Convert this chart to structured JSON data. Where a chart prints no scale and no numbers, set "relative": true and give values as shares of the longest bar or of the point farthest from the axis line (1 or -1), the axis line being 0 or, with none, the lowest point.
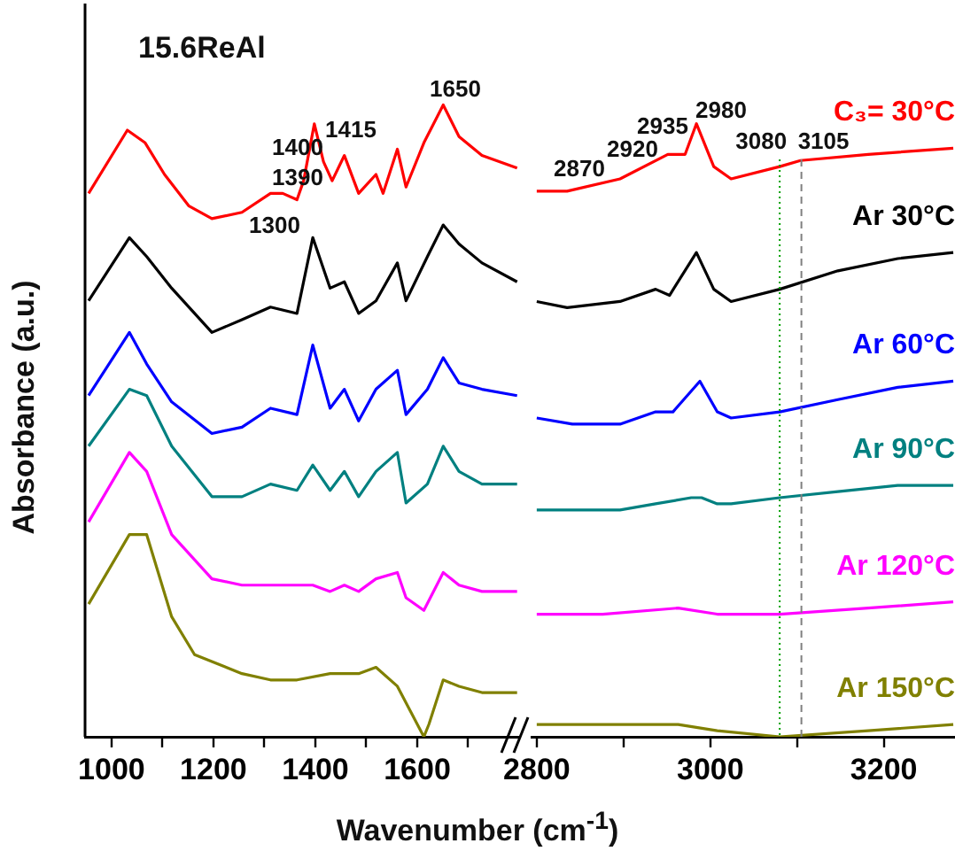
{
  "chart_data": [
    {
      "type": "line",
      "ylabel": "Absorbance (a.u.)",
      "xlabel": "Wavenumber (cm$^{-1}$)",
      "relative": true,
      "xlim": [
        948,
        1800
      ],
      "xticks": [
        1000,
        {
          "value": 1100,
          "label": null
        },
        1200,
        {
          "value": 1300,
          "label": null
        },
        1400,
        {
          "value": 1500,
          "label": null
        },
        1600,
        {
          "value": 1700,
          "label": null
        }
      ],
      "annotations": [
        "15.6ReAl",
        "1650",
        "1415",
        "1400",
        "1390",
        "1300"
      ],
      "series": [
        {
          "color": "#ff0000",
          "x": [
            955,
            1031,
            1066,
            1104,
            1152,
            1197,
            1256,
            1312,
            1336,
            1364,
            1377,
            1398,
            1416,
            1433,
            1457,
            1485,
            1519,
            1533,
            1561,
            1578,
            1613,
            1651,
            1682,
            1727,
            1796
          ],
          "values": [
            0.86,
            0.96,
            0.94,
            0.89,
            0.84,
            0.82,
            0.83,
            0.86,
            0.86,
            0.85,
            0.88,
            0.97,
            0.91,
            0.88,
            0.92,
            0.86,
            0.89,
            0.86,
            0.93,
            0.87,
            0.94,
            1.0,
            0.95,
            0.92,
            0.9
          ]
        },
        {
          "color": "#000000",
          "x": [
            955,
            1035,
            1069,
            1118,
            1197,
            1256,
            1312,
            1364,
            1395,
            1429,
            1457,
            1485,
            1519,
            1561,
            1578,
            1620,
            1651,
            1682,
            1727,
            1796
          ],
          "values": [
            0.69,
            0.79,
            0.76,
            0.71,
            0.64,
            0.66,
            0.68,
            0.67,
            0.79,
            0.71,
            0.72,
            0.67,
            0.69,
            0.75,
            0.69,
            0.76,
            0.81,
            0.78,
            0.75,
            0.72
          ]
        },
        {
          "color": "#0000ff",
          "x": [
            955,
            1035,
            1069,
            1118,
            1197,
            1256,
            1312,
            1364,
            1395,
            1429,
            1457,
            1485,
            1519,
            1561,
            1578,
            1620,
            1651,
            1682,
            1727,
            1796
          ],
          "values": [
            0.54,
            0.64,
            0.59,
            0.53,
            0.48,
            0.49,
            0.52,
            0.51,
            0.62,
            0.52,
            0.55,
            0.5,
            0.55,
            0.58,
            0.51,
            0.55,
            0.6,
            0.56,
            0.55,
            0.54
          ]
        },
        {
          "color": "#008080",
          "x": [
            955,
            1035,
            1069,
            1118,
            1197,
            1256,
            1312,
            1364,
            1395,
            1429,
            1457,
            1485,
            1519,
            1561,
            1578,
            1620,
            1651,
            1682,
            1727,
            1796
          ],
          "values": [
            0.46,
            0.55,
            0.54,
            0.46,
            0.38,
            0.38,
            0.4,
            0.39,
            0.43,
            0.39,
            0.42,
            0.38,
            0.42,
            0.45,
            0.37,
            0.4,
            0.46,
            0.42,
            0.4,
            0.4
          ]
        },
        {
          "color": "#ff00ff",
          "x": [
            955,
            1035,
            1069,
            1118,
            1197,
            1256,
            1312,
            1364,
            1395,
            1429,
            1457,
            1485,
            1519,
            1561,
            1578,
            1613,
            1651,
            1682,
            1727,
            1796
          ],
          "values": [
            0.34,
            0.45,
            0.42,
            0.32,
            0.25,
            0.24,
            0.24,
            0.24,
            0.24,
            0.23,
            0.24,
            0.23,
            0.25,
            0.26,
            0.22,
            0.2,
            0.26,
            0.24,
            0.23,
            0.23
          ]
        },
        {
          "color": "#808000",
          "x": [
            955,
            1035,
            1069,
            1118,
            1163,
            1256,
            1312,
            1364,
            1429,
            1485,
            1519,
            1561,
            1613,
            1623,
            1651,
            1682,
            1727,
            1796
          ],
          "values": [
            0.21,
            0.32,
            0.32,
            0.19,
            0.13,
            0.1,
            0.09,
            0.09,
            0.1,
            0.1,
            0.11,
            0.08,
            0,
            0.02,
            0.09,
            0.08,
            0.07,
            0.07
          ]
        }
      ]
    },
    {
      "type": "line",
      "relative": true,
      "xlim": [
        2794,
        3282
      ],
      "xticks": [
        2800,
        {
          "value": 2900,
          "label": null
        },
        3000,
        {
          "value": 3100,
          "label": null
        },
        3200
      ],
      "annotations": [
        "2870",
        "2920",
        "2935",
        "2980"
      ],
      "ref_lines": [
        {
          "axis": "x",
          "value": 3080,
          "label": "3080",
          "color": "#00a000",
          "line_style": "dotted"
        },
        {
          "axis": "x",
          "value": 3105,
          "label": "3105",
          "color": "#808080",
          "line_style": "dashed"
        }
      ],
      "series": [
        {
          "name": "C₃= 30°C",
          "color": "#ff0000",
          "x": [
            2800,
            2835,
            2896,
            2951,
            2971,
            2984,
            3004,
            3024,
            3080,
            3104,
            3182,
            3280
          ],
          "values": [
            0.89,
            0.89,
            0.91,
            0.95,
            0.95,
            1.0,
            0.93,
            0.91,
            0.93,
            0.94,
            0.95,
            0.96
          ]
        },
        {
          "name": "Ar 30°C",
          "color": "#000000",
          "x": [
            2800,
            2835,
            2896,
            2937,
            2953,
            2984,
            3004,
            3024,
            3080,
            3147,
            3216,
            3280
          ],
          "values": [
            0.71,
            0.7,
            0.71,
            0.73,
            0.72,
            0.79,
            0.73,
            0.71,
            0.73,
            0.76,
            0.78,
            0.79
          ]
        },
        {
          "name": "Ar 60°C",
          "color": "#0000ff",
          "x": [
            2800,
            2841,
            2896,
            2937,
            2957,
            2988,
            3008,
            3024,
            3080,
            3147,
            3216,
            3280
          ],
          "values": [
            0.52,
            0.51,
            0.51,
            0.53,
            0.53,
            0.58,
            0.53,
            0.52,
            0.53,
            0.55,
            0.57,
            0.58
          ]
        },
        {
          "name": "Ar 90°C",
          "color": "#008080",
          "x": [
            2800,
            2841,
            2896,
            2937,
            2978,
            2990,
            3008,
            3024,
            3080,
            3147,
            3216,
            3280
          ],
          "values": [
            0.37,
            0.37,
            0.37,
            0.38,
            0.39,
            0.39,
            0.38,
            0.38,
            0.39,
            0.4,
            0.41,
            0.41
          ]
        },
        {
          "name": "Ar 120°C",
          "color": "#ff00ff",
          "x": [
            2800,
            2876,
            2963,
            3008,
            3080,
            3182,
            3280
          ],
          "values": [
            0.2,
            0.2,
            0.21,
            0.2,
            0.2,
            0.21,
            0.22
          ]
        },
        {
          "name": "Ar 150°C",
          "color": "#808000",
          "x": [
            2800,
            2876,
            2963,
            3008,
            3080,
            3182,
            3280
          ],
          "values": [
            0.02,
            0.02,
            0.02,
            0.01,
            0,
            0.01,
            0.02
          ]
        }
      ]
    }
  ]
}
